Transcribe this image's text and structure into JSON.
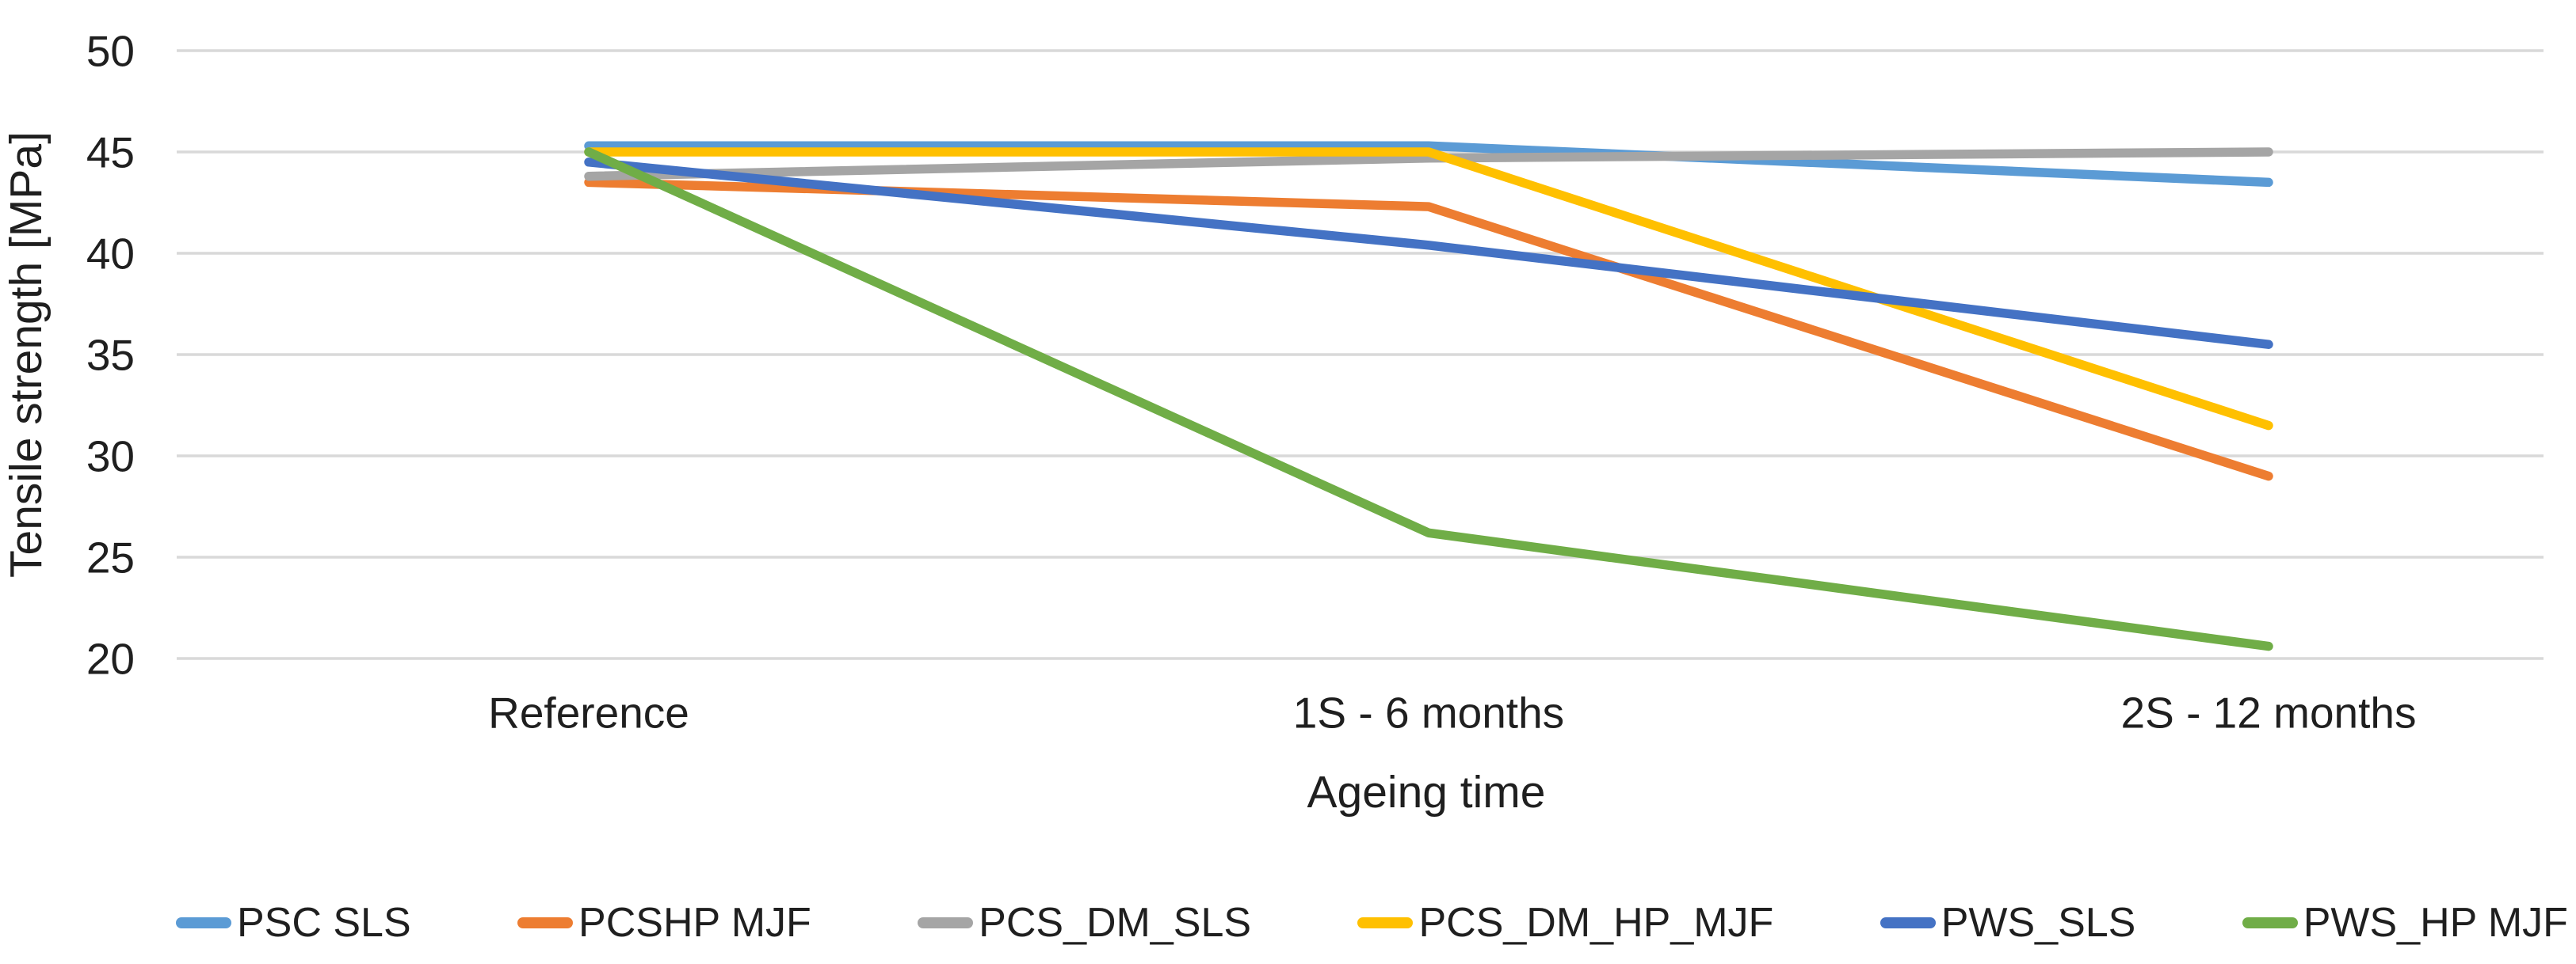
{
  "chart_data": {
    "type": "line",
    "title": "",
    "xlabel": "Ageing time",
    "ylabel": "Tensile strength [MPa]",
    "categories": [
      "Reference",
      "1S - 6 months",
      "2S - 12 months"
    ],
    "series": [
      {
        "name": "PSC SLS",
        "color": "#5B9BD5",
        "values": [
          45.3,
          45.3,
          43.5
        ]
      },
      {
        "name": "PCSHP MJF",
        "color": "#ED7D31",
        "values": [
          43.5,
          42.3,
          29.0
        ]
      },
      {
        "name": "PCS_DM_SLS",
        "color": "#A5A5A5",
        "values": [
          43.8,
          44.7,
          45.0
        ]
      },
      {
        "name": "PCS_DM_HP_MJF",
        "color": "#FFC000",
        "values": [
          45.0,
          45.0,
          31.5
        ]
      },
      {
        "name": "PWS_SLS",
        "color": "#4472C4",
        "values": [
          44.5,
          40.4,
          35.5
        ]
      },
      {
        "name": "PWS_HP MJF",
        "color": "#70AD47",
        "values": [
          45.0,
          26.2,
          20.6
        ]
      }
    ],
    "ylim": [
      20,
      50
    ],
    "yticks": [
      50,
      45,
      40,
      35,
      30,
      25,
      20
    ],
    "grid": true,
    "gridline_color": "#D9D9D9",
    "legend_position": "bottom",
    "text_color": "#1f1f1f"
  }
}
